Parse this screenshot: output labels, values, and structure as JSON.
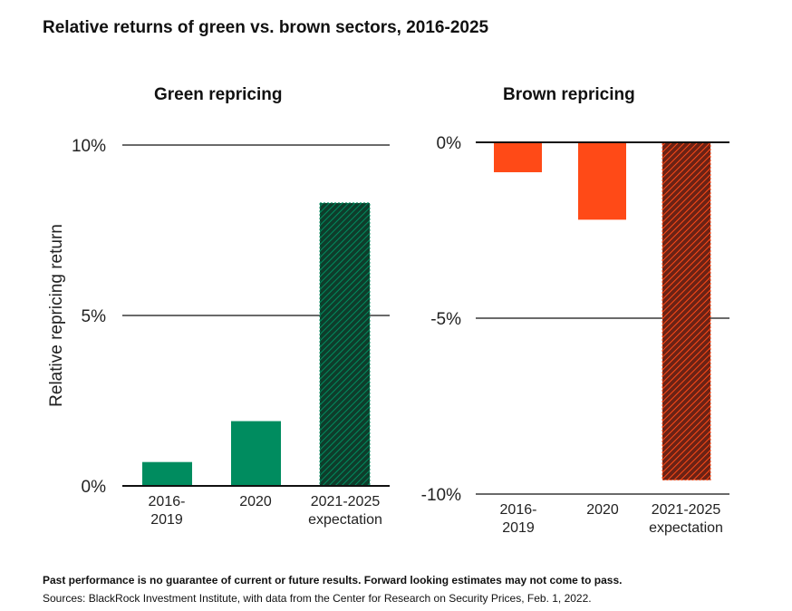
{
  "title": "Relative returns of green vs. brown sectors, 2016-2025",
  "footnote_disclaimer": "Past performance is no guarantee of current or future results. Forward looking estimates may not come to pass.",
  "footnote_sources": "Sources: BlackRock Investment Institute, with data from the Center for Research on Security Prices, Feb. 1, 2022.",
  "colors": {
    "green": "#008c5f",
    "green_hatch_bg": "#0e3d2b",
    "brown": "#ff4a17",
    "brown_hatch_bg": "#6b2215",
    "axis": "#111111"
  },
  "chart_data": [
    {
      "type": "bar",
      "title": "Green repricing",
      "ylabel": "Relative repricing return",
      "ylim": [
        0,
        10
      ],
      "yticks": [
        0,
        5,
        10
      ],
      "ytick_labels": [
        "0%",
        "5%",
        "10%"
      ],
      "categories": [
        [
          "2016-",
          "2019"
        ],
        [
          "2020"
        ],
        [
          "2021-2025",
          "expectation"
        ]
      ],
      "values": [
        0.7,
        1.9,
        8.3
      ],
      "hatched": [
        false,
        false,
        true
      ],
      "color": "green"
    },
    {
      "type": "bar",
      "title": "Brown repricing",
      "ylabel": "",
      "ylim": [
        -10,
        0
      ],
      "yticks": [
        0,
        -5,
        -10
      ],
      "ytick_labels": [
        "0%",
        "-5%",
        "-10%"
      ],
      "categories": [
        [
          "2016-",
          "2019"
        ],
        [
          "2020"
        ],
        [
          "2021-2025",
          "expectation"
        ]
      ],
      "values": [
        -0.85,
        -2.2,
        -9.6
      ],
      "hatched": [
        false,
        false,
        true
      ],
      "color": "brown"
    }
  ]
}
